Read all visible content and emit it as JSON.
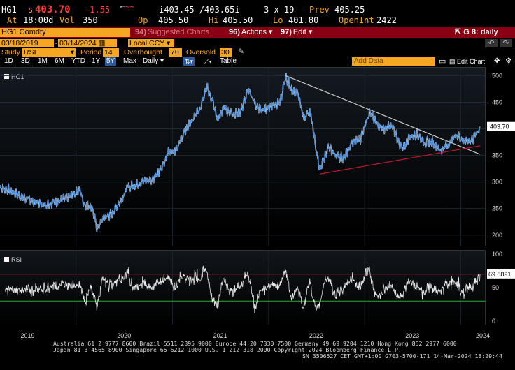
{
  "quote": {
    "ticker": "HG1",
    "last_prefix": "s",
    "last": "403.70",
    "change": "-1.55",
    "bid_ask": "i403.45 /403.65i",
    "size": "3 x 19",
    "prev_label": "Prev",
    "prev": "405.25",
    "at_label": "At",
    "time": "18:00d",
    "vol_label": "Vol",
    "vol": "350",
    "op_label": "Op",
    "op": "405.50",
    "hi_label": "Hi",
    "hi": "405.50",
    "lo_label": "Lo",
    "lo": "401.80",
    "openint_label": "OpenInt",
    "openint": "2422"
  },
  "cmdbar": {
    "security": "HG1 Comdty",
    "suggested_num": "94)",
    "suggested": "Suggested Charts",
    "actions_num": "96)",
    "actions": "Actions",
    "edit_num": "97)",
    "edit": "Edit",
    "page_label": "G 8: daily"
  },
  "range": {
    "start": "03/18/2019",
    "end": "03/14/2024",
    "currency": "Local CCY"
  },
  "study": {
    "study_label": "Study",
    "study_value": "RSI",
    "period_label": "Period",
    "period_value": "14",
    "overbought_label": "Overbought",
    "overbought_value": "70",
    "oversold_label": "Oversold",
    "oversold_value": "30"
  },
  "toolbar": {
    "periods": [
      "1D",
      "3D",
      "1M",
      "6M",
      "YTD",
      "1Y",
      "5Y",
      "Max"
    ],
    "selected_period": "5Y",
    "frequency": "Daily",
    "table_label": "Table",
    "add_data_placeholder": "Add Data",
    "edit_chart": "Edit Chart"
  },
  "main_panel": {
    "legend": "HG1",
    "last_value_badge": "403.70"
  },
  "rsi_panel": {
    "legend": "RSI",
    "last_value_badge": "69.8891"
  },
  "chart_data": [
    {
      "type": "line",
      "series": [
        {
          "name": "HG1"
        }
      ],
      "x_start": "2019-03-18",
      "x_end": "2024-03-14",
      "x_ticks": [
        "2019",
        "2020",
        "2021",
        "2022",
        "2023",
        "2024"
      ],
      "y_ticks": [
        200,
        250,
        300,
        350,
        400,
        450,
        500
      ],
      "ylim": [
        180,
        515
      ],
      "points": [
        [
          "2019-03-18",
          290
        ],
        [
          "2019-05-01",
          283
        ],
        [
          "2019-06-15",
          270
        ],
        [
          "2019-08-01",
          262
        ],
        [
          "2019-09-01",
          258
        ],
        [
          "2019-10-15",
          262
        ],
        [
          "2019-12-01",
          270
        ],
        [
          "2020-01-15",
          285
        ],
        [
          "2020-02-01",
          258
        ],
        [
          "2020-03-01",
          255
        ],
        [
          "2020-03-20",
          212
        ],
        [
          "2020-04-15",
          232
        ],
        [
          "2020-05-15",
          240
        ],
        [
          "2020-06-15",
          262
        ],
        [
          "2020-07-15",
          290
        ],
        [
          "2020-08-15",
          295
        ],
        [
          "2020-09-15",
          302
        ],
        [
          "2020-10-15",
          305
        ],
        [
          "2020-11-15",
          320
        ],
        [
          "2020-12-15",
          355
        ],
        [
          "2021-01-15",
          362
        ],
        [
          "2021-02-15",
          392
        ],
        [
          "2021-03-01",
          405
        ],
        [
          "2021-03-15",
          412
        ],
        [
          "2021-04-15",
          440
        ],
        [
          "2021-05-10",
          480
        ],
        [
          "2021-06-01",
          455
        ],
        [
          "2021-06-20",
          415
        ],
        [
          "2021-07-15",
          440
        ],
        [
          "2021-08-15",
          430
        ],
        [
          "2021-09-15",
          430
        ],
        [
          "2021-10-18",
          475
        ],
        [
          "2021-11-15",
          440
        ],
        [
          "2021-12-15",
          435
        ],
        [
          "2022-01-15",
          445
        ],
        [
          "2022-02-15",
          450
        ],
        [
          "2022-03-07",
          498
        ],
        [
          "2022-04-01",
          470
        ],
        [
          "2022-04-20",
          470
        ],
        [
          "2022-05-15",
          420
        ],
        [
          "2022-06-10",
          430
        ],
        [
          "2022-06-25",
          380
        ],
        [
          "2022-07-15",
          320
        ],
        [
          "2022-07-25",
          335
        ],
        [
          "2022-08-15",
          365
        ],
        [
          "2022-09-15",
          350
        ],
        [
          "2022-10-15",
          345
        ],
        [
          "2022-11-15",
          375
        ],
        [
          "2022-12-15",
          380
        ],
        [
          "2023-01-18",
          432
        ],
        [
          "2023-02-15",
          410
        ],
        [
          "2023-03-15",
          400
        ],
        [
          "2023-04-15",
          405
        ],
        [
          "2023-05-25",
          360
        ],
        [
          "2023-06-20",
          385
        ],
        [
          "2023-07-20",
          390
        ],
        [
          "2023-08-15",
          375
        ],
        [
          "2023-09-15",
          375
        ],
        [
          "2023-10-15",
          360
        ],
        [
          "2023-11-15",
          370
        ],
        [
          "2023-12-15",
          390
        ],
        [
          "2024-01-15",
          375
        ],
        [
          "2024-02-15",
          380
        ],
        [
          "2024-03-14",
          403.7
        ]
      ],
      "trendlines": [
        {
          "name": "resistance",
          "color": "#c8c8c8",
          "from": [
            "2022-03-07",
            500
          ],
          "to": [
            "2024-03-14",
            352
          ]
        },
        {
          "name": "support",
          "color": "#c0162b",
          "from": [
            "2022-07-15",
            315
          ],
          "to": [
            "2024-03-14",
            368
          ]
        }
      ]
    },
    {
      "type": "line",
      "series": [
        {
          "name": "RSI"
        }
      ],
      "y_ticks": [
        0,
        50,
        100
      ],
      "ylim": [
        -5,
        105
      ],
      "overbought": 70,
      "oversold": 30,
      "last": 69.8891
    }
  ],
  "colors": {
    "amber": "#f5a623",
    "price_line": "#4a90e2",
    "cmd_bar": "#8a0012",
    "overbought_line": "#c0162b",
    "oversold_line": "#2ea82e"
  },
  "footer": {
    "line1": "Australia 61 2 9777 8600 Brazil 5511 2395 9000 Europe 44 20 7330 7500 Germany 49 69 9204 1210 Hong Kong 852 2977 6000",
    "line2": "Japan 81 3 4565 8900       Singapore 65 6212 1000       U.S. 1 212 318 2000              Copyright 2024 Bloomberg Finance L.P.",
    "line3": "SN 3506527 CET  GMT+1:00 G703-5700-171 14-Mar-2024 18:29:44"
  }
}
